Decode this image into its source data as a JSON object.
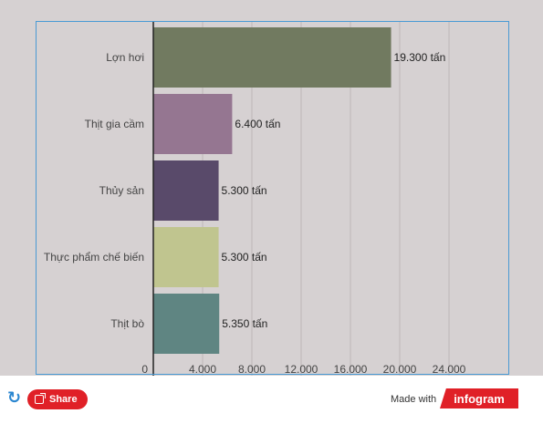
{
  "chart_data": {
    "type": "bar",
    "orientation": "horizontal",
    "categories": [
      "Lợn hơi",
      "Thịt gia cầm",
      "Thủy sản",
      "Thực phẩm chế biến",
      "Thịt bò"
    ],
    "values": [
      19300,
      6400,
      5300,
      5300,
      5350
    ],
    "value_labels": [
      "19.300 tấn",
      "6.400 tấn",
      "5.300 tấn",
      "5.300 tấn",
      "5.350 tấn"
    ],
    "colors": [
      "#717a60",
      "#957691",
      "#594a6a",
      "#c0c58f",
      "#5f8582"
    ],
    "xlim": [
      0,
      24000
    ],
    "x_ticks": [
      0,
      4000,
      8000,
      12000,
      16000,
      20000,
      24000
    ],
    "x_tick_labels": [
      "0",
      "4.000",
      "8.000",
      "12.000",
      "16.000",
      "20.000",
      "24.000"
    ],
    "grid": true,
    "background": "#d6d1d2"
  },
  "footer": {
    "share_label": "Share",
    "made_with": "Made with",
    "brand": "infogram"
  },
  "colors": {
    "accent": "#e02027",
    "refresh": "#2a86d0"
  },
  "icons": {
    "refresh": "refresh-icon",
    "share": "share-icon"
  }
}
